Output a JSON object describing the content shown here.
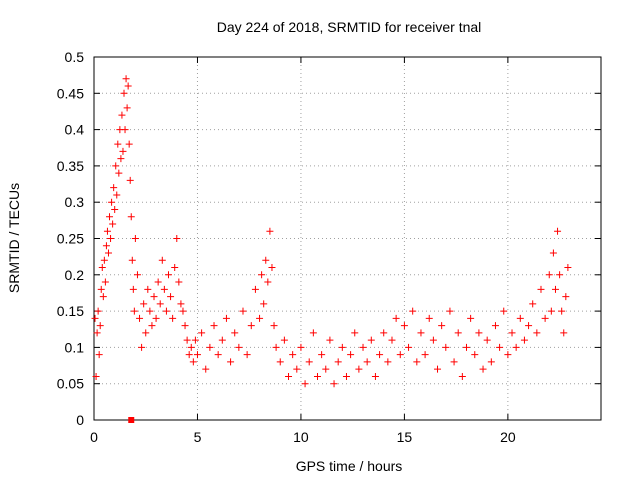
{
  "chart_data": {
    "type": "scatter",
    "title": "Day 224 of 2018, SRMTID for receiver tnal",
    "xlabel": "GPS time / hours",
    "ylabel": "SRMTID / TECUs",
    "xlim": [
      0,
      24.5
    ],
    "ylim": [
      0,
      0.5
    ],
    "x_ticks": [
      0,
      5,
      10,
      15,
      20
    ],
    "x_tick_labels": [
      "0",
      "5",
      "10",
      "15",
      "20"
    ],
    "y_ticks": [
      0,
      0.05,
      0.1,
      0.15,
      0.2,
      0.25,
      0.3,
      0.35,
      0.4,
      0.45,
      0.5
    ],
    "y_tick_labels": [
      "0",
      "0.05",
      "0.1",
      "0.15",
      "0.2",
      "0.25",
      "0.3",
      "0.35",
      "0.4",
      "0.45",
      "0.5"
    ],
    "grid": true,
    "marker": "plus",
    "color": "#ff0000",
    "series": [
      {
        "name": "SRMTID",
        "points": [
          [
            0.05,
            0.14
          ],
          [
            0.1,
            0.06
          ],
          [
            0.15,
            0.12
          ],
          [
            0.2,
            0.15
          ],
          [
            0.25,
            0.09
          ],
          [
            0.3,
            0.13
          ],
          [
            0.35,
            0.18
          ],
          [
            0.4,
            0.21
          ],
          [
            0.45,
            0.17
          ],
          [
            0.5,
            0.22
          ],
          [
            0.55,
            0.19
          ],
          [
            0.6,
            0.24
          ],
          [
            0.65,
            0.26
          ],
          [
            0.7,
            0.23
          ],
          [
            0.75,
            0.28
          ],
          [
            0.8,
            0.25
          ],
          [
            0.85,
            0.3
          ],
          [
            0.9,
            0.27
          ],
          [
            0.95,
            0.32
          ],
          [
            1.0,
            0.29
          ],
          [
            1.05,
            0.35
          ],
          [
            1.1,
            0.31
          ],
          [
            1.15,
            0.38
          ],
          [
            1.2,
            0.34
          ],
          [
            1.25,
            0.4
          ],
          [
            1.3,
            0.36
          ],
          [
            1.35,
            0.42
          ],
          [
            1.4,
            0.37
          ],
          [
            1.45,
            0.45
          ],
          [
            1.5,
            0.4
          ],
          [
            1.55,
            0.47
          ],
          [
            1.6,
            0.43
          ],
          [
            1.65,
            0.46
          ],
          [
            1.7,
            0.38
          ],
          [
            1.75,
            0.33
          ],
          [
            1.8,
            0.28
          ],
          [
            1.85,
            0.22
          ],
          [
            1.9,
            0.18
          ],
          [
            1.95,
            0.15
          ],
          [
            2.0,
            0.25
          ],
          [
            2.1,
            0.2
          ],
          [
            2.2,
            0.14
          ],
          [
            2.3,
            0.1
          ],
          [
            2.4,
            0.16
          ],
          [
            2.5,
            0.12
          ],
          [
            2.6,
            0.18
          ],
          [
            2.7,
            0.15
          ],
          [
            2.8,
            0.13
          ],
          [
            2.9,
            0.17
          ],
          [
            3.0,
            0.14
          ],
          [
            3.1,
            0.19
          ],
          [
            3.2,
            0.16
          ],
          [
            3.3,
            0.22
          ],
          [
            3.4,
            0.18
          ],
          [
            3.5,
            0.15
          ],
          [
            3.6,
            0.2
          ],
          [
            3.7,
            0.17
          ],
          [
            3.8,
            0.14
          ],
          [
            3.9,
            0.21
          ],
          [
            4.0,
            0.25
          ],
          [
            4.1,
            0.19
          ],
          [
            4.2,
            0.16
          ],
          [
            4.3,
            0.15
          ],
          [
            4.4,
            0.13
          ],
          [
            4.5,
            0.11
          ],
          [
            4.6,
            0.09
          ],
          [
            4.7,
            0.1
          ],
          [
            4.8,
            0.08
          ],
          [
            4.9,
            0.11
          ],
          [
            5.0,
            0.09
          ],
          [
            5.2,
            0.12
          ],
          [
            5.4,
            0.07
          ],
          [
            5.6,
            0.1
          ],
          [
            5.8,
            0.13
          ],
          [
            6.0,
            0.09
          ],
          [
            6.2,
            0.11
          ],
          [
            6.4,
            0.14
          ],
          [
            6.6,
            0.08
          ],
          [
            6.8,
            0.12
          ],
          [
            7.0,
            0.1
          ],
          [
            7.2,
            0.15
          ],
          [
            7.4,
            0.09
          ],
          [
            7.6,
            0.13
          ],
          [
            7.8,
            0.18
          ],
          [
            8.0,
            0.14
          ],
          [
            8.1,
            0.2
          ],
          [
            8.2,
            0.16
          ],
          [
            8.3,
            0.22
          ],
          [
            8.4,
            0.19
          ],
          [
            8.5,
            0.26
          ],
          [
            8.6,
            0.21
          ],
          [
            8.7,
            0.13
          ],
          [
            8.8,
            0.1
          ],
          [
            9.0,
            0.08
          ],
          [
            9.2,
            0.11
          ],
          [
            9.4,
            0.06
          ],
          [
            9.6,
            0.09
          ],
          [
            9.8,
            0.07
          ],
          [
            10.0,
            0.1
          ],
          [
            10.2,
            0.05
          ],
          [
            10.4,
            0.08
          ],
          [
            10.6,
            0.12
          ],
          [
            10.8,
            0.06
          ],
          [
            11.0,
            0.09
          ],
          [
            11.2,
            0.07
          ],
          [
            11.4,
            0.11
          ],
          [
            11.6,
            0.05
          ],
          [
            11.8,
            0.08
          ],
          [
            12.0,
            0.1
          ],
          [
            12.2,
            0.06
          ],
          [
            12.4,
            0.09
          ],
          [
            12.6,
            0.12
          ],
          [
            12.8,
            0.07
          ],
          [
            13.0,
            0.1
          ],
          [
            13.2,
            0.08
          ],
          [
            13.4,
            0.11
          ],
          [
            13.6,
            0.06
          ],
          [
            13.8,
            0.09
          ],
          [
            14.0,
            0.12
          ],
          [
            14.2,
            0.08
          ],
          [
            14.4,
            0.11
          ],
          [
            14.6,
            0.14
          ],
          [
            14.8,
            0.09
          ],
          [
            15.0,
            0.13
          ],
          [
            15.2,
            0.1
          ],
          [
            15.4,
            0.15
          ],
          [
            15.6,
            0.08
          ],
          [
            15.8,
            0.12
          ],
          [
            16.0,
            0.09
          ],
          [
            16.2,
            0.14
          ],
          [
            16.4,
            0.11
          ],
          [
            16.6,
            0.07
          ],
          [
            16.8,
            0.13
          ],
          [
            17.0,
            0.1
          ],
          [
            17.2,
            0.15
          ],
          [
            17.4,
            0.08
          ],
          [
            17.6,
            0.12
          ],
          [
            17.8,
            0.06
          ],
          [
            18.0,
            0.1
          ],
          [
            18.2,
            0.14
          ],
          [
            18.4,
            0.09
          ],
          [
            18.6,
            0.12
          ],
          [
            18.8,
            0.07
          ],
          [
            19.0,
            0.11
          ],
          [
            19.2,
            0.08
          ],
          [
            19.4,
            0.13
          ],
          [
            19.6,
            0.1
          ],
          [
            19.8,
            0.15
          ],
          [
            20.0,
            0.09
          ],
          [
            20.2,
            0.12
          ],
          [
            20.4,
            0.1
          ],
          [
            20.6,
            0.14
          ],
          [
            20.8,
            0.11
          ],
          [
            21.0,
            0.13
          ],
          [
            21.2,
            0.16
          ],
          [
            21.4,
            0.12
          ],
          [
            21.6,
            0.18
          ],
          [
            21.8,
            0.14
          ],
          [
            22.0,
            0.2
          ],
          [
            22.1,
            0.15
          ],
          [
            22.2,
            0.23
          ],
          [
            22.3,
            0.18
          ],
          [
            22.4,
            0.26
          ],
          [
            22.5,
            0.2
          ],
          [
            22.6,
            0.15
          ],
          [
            22.7,
            0.12
          ],
          [
            22.8,
            0.17
          ],
          [
            22.9,
            0.21
          ]
        ]
      }
    ],
    "special_marker": {
      "x": 1.8,
      "y": 0.0,
      "shape": "square"
    }
  }
}
